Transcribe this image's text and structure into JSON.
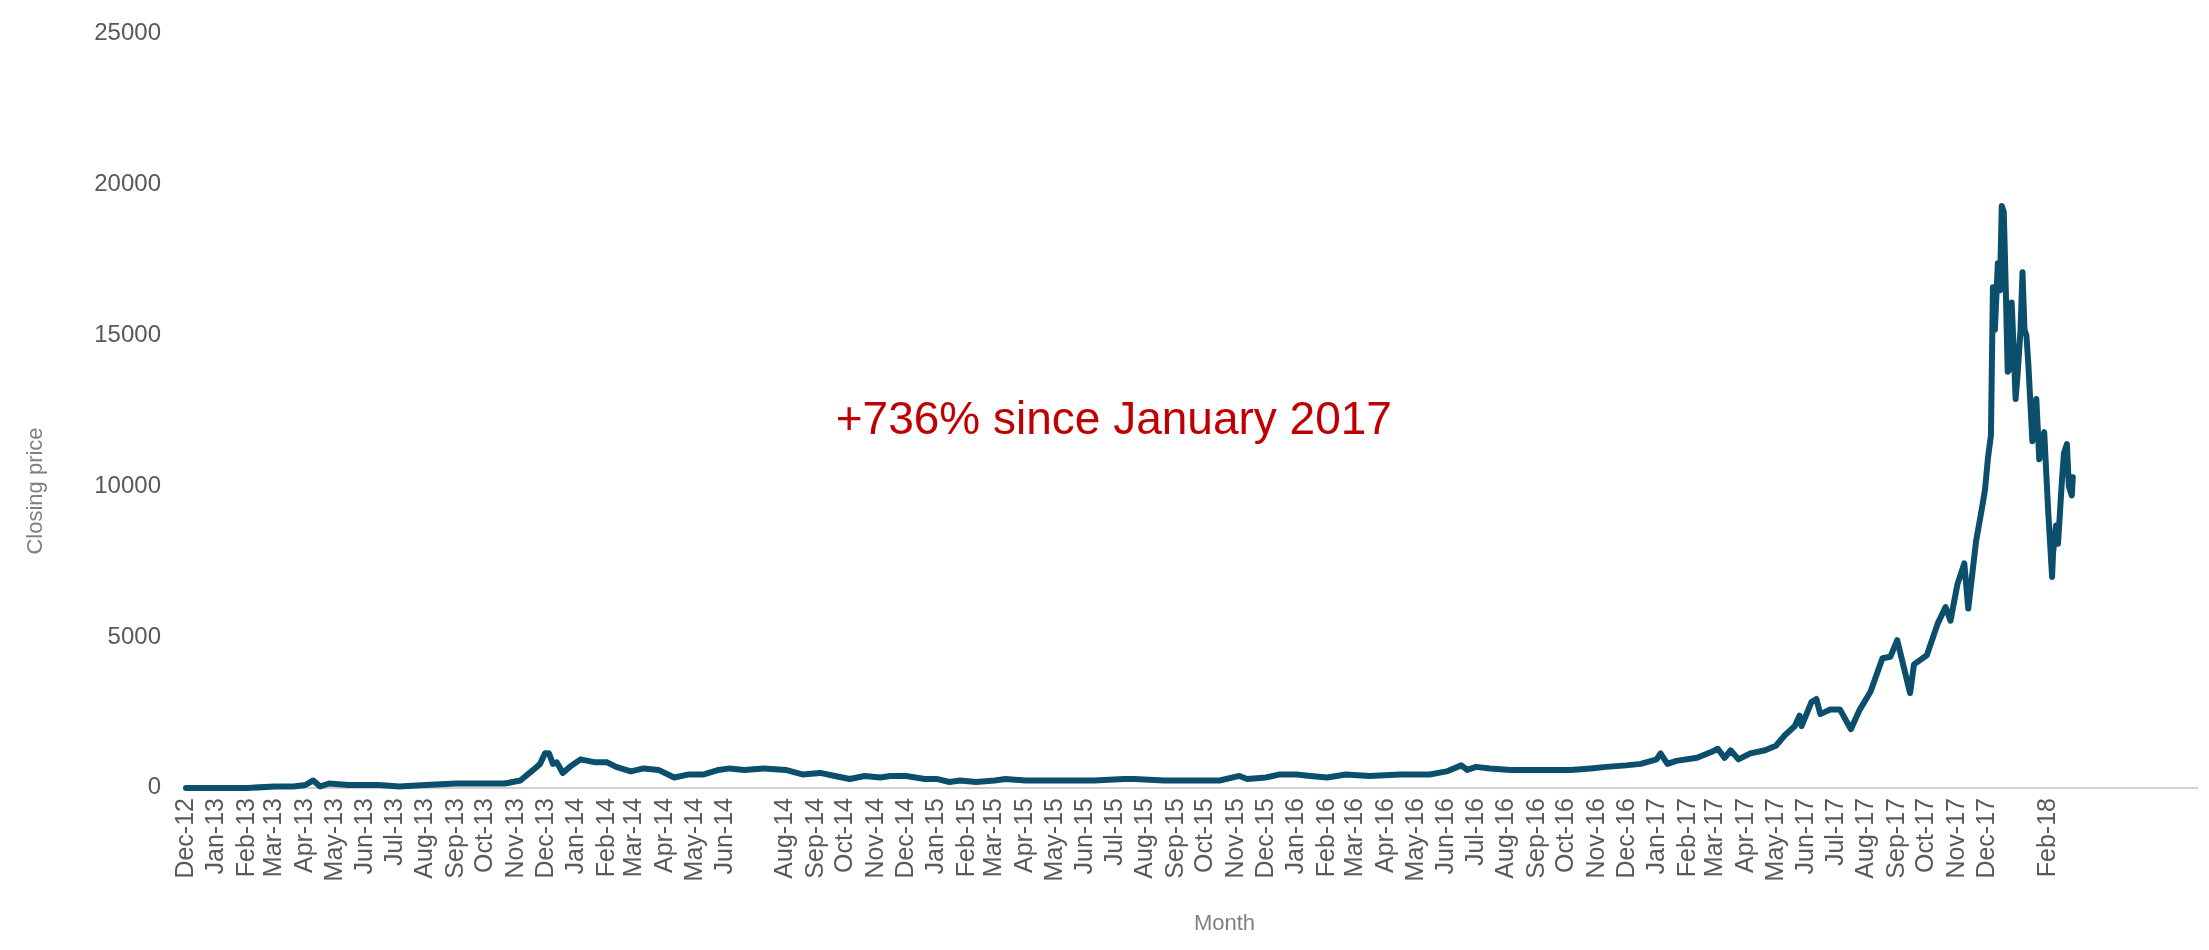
{
  "chart_data": {
    "type": "line",
    "xlabel": "Month",
    "ylabel": "Closing price",
    "annotations": [
      "+736% since January 2017"
    ],
    "x": [
      "2012-12-01",
      "2013-01-01",
      "2013-02-01",
      "2013-03-01",
      "2013-03-20",
      "2013-04-01",
      "2013-04-09",
      "2013-04-16",
      "2013-04-25",
      "2013-05-15",
      "2013-06-15",
      "2013-07-05",
      "2013-08-01",
      "2013-09-01",
      "2013-10-01",
      "2013-10-20",
      "2013-11-05",
      "2013-11-18",
      "2013-11-25",
      "2013-11-30",
      "2013-12-04",
      "2013-12-08",
      "2013-12-12",
      "2013-12-18",
      "2013-12-25",
      "2014-01-05",
      "2014-01-20",
      "2014-02-01",
      "2014-02-10",
      "2014-02-25",
      "2014-03-10",
      "2014-03-25",
      "2014-04-10",
      "2014-04-25",
      "2014-05-10",
      "2014-05-25",
      "2014-06-05",
      "2014-06-20",
      "2014-07-10",
      "2014-08-01",
      "2014-08-18",
      "2014-09-05",
      "2014-09-20",
      "2014-10-05",
      "2014-10-20",
      "2014-11-05",
      "2014-11-15",
      "2014-12-01",
      "2014-12-20",
      "2015-01-01",
      "2015-01-14",
      "2015-01-25",
      "2015-02-10",
      "2015-03-01",
      "2015-03-12",
      "2015-04-01",
      "2015-04-20",
      "2015-05-15",
      "2015-06-10",
      "2015-07-10",
      "2015-07-20",
      "2015-08-20",
      "2015-09-15",
      "2015-10-15",
      "2015-11-04",
      "2015-11-12",
      "2015-12-01",
      "2015-12-15",
      "2016-01-01",
      "2016-01-15",
      "2016-02-01",
      "2016-02-20",
      "2016-03-15",
      "2016-04-15",
      "2016-05-15",
      "2016-06-01",
      "2016-06-16",
      "2016-06-22",
      "2016-07-01",
      "2016-07-15",
      "2016-08-05",
      "2016-08-20",
      "2016-09-10",
      "2016-10-05",
      "2016-10-25",
      "2016-11-10",
      "2016-11-30",
      "2016-12-15",
      "2016-12-31",
      "2017-01-04",
      "2017-01-11",
      "2017-01-20",
      "2017-02-10",
      "2017-02-25",
      "2017-03-03",
      "2017-03-10",
      "2017-03-16",
      "2017-03-24",
      "2017-04-05",
      "2017-04-20",
      "2017-05-01",
      "2017-05-10",
      "2017-05-20",
      "2017-05-25",
      "2017-05-27",
      "2017-06-06",
      "2017-06-11",
      "2017-06-15",
      "2017-06-25",
      "2017-07-05",
      "2017-07-16",
      "2017-07-25",
      "2017-08-05",
      "2017-08-17",
      "2017-08-25",
      "2017-09-01",
      "2017-09-14",
      "2017-09-18",
      "2017-10-01",
      "2017-10-12",
      "2017-10-20",
      "2017-10-25",
      "2017-11-01",
      "2017-11-08",
      "2017-11-12",
      "2017-11-20",
      "2017-11-26",
      "2017-11-29",
      "2017-12-02",
      "2017-12-05",
      "2017-12-07",
      "2017-12-09",
      "2017-12-12",
      "2017-12-14",
      "2017-12-16",
      "2017-12-18",
      "2017-12-20",
      "2017-12-22",
      "2017-12-24",
      "2017-12-26",
      "2017-12-28",
      "2017-12-30",
      "2018-01-01",
      "2018-01-04",
      "2018-01-06",
      "2018-01-08",
      "2018-01-10",
      "2018-01-12",
      "2018-01-16",
      "2018-01-20",
      "2018-01-23",
      "2018-01-28",
      "2018-02-01",
      "2018-02-05",
      "2018-02-06",
      "2018-02-09",
      "2018-02-11",
      "2018-02-15",
      "2018-02-17",
      "2018-02-20",
      "2018-02-22",
      "2018-02-25",
      "2018-02-26"
    ],
    "series": [
      {
        "color": "#0b4f6c",
        "values": [
          0,
          0,
          0,
          50,
          50,
          100,
          250,
          50,
          150,
          100,
          100,
          50,
          100,
          150,
          150,
          150,
          250,
          600,
          800,
          1150,
          1150,
          800,
          850,
          500,
          700,
          950,
          850,
          850,
          700,
          550,
          650,
          600,
          350,
          450,
          450,
          600,
          650,
          600,
          650,
          600,
          450,
          500,
          400,
          300,
          400,
          350,
          400,
          400,
          300,
          300,
          200,
          250,
          200,
          250,
          300,
          250,
          250,
          250,
          250,
          300,
          300,
          250,
          250,
          250,
          400,
          300,
          350,
          450,
          450,
          400,
          350,
          450,
          400,
          450,
          450,
          550,
          750,
          600,
          700,
          650,
          600,
          600,
          600,
          600,
          650,
          700,
          750,
          800,
          950,
          1150,
          800,
          900,
          1000,
          1200,
          1300,
          1000,
          1250,
          950,
          1150,
          1250,
          1400,
          1750,
          2050,
          2400,
          2050,
          2850,
          2950,
          2450,
          2600,
          2600,
          1950,
          2600,
          3200,
          4300,
          4350,
          4900,
          3150,
          4100,
          4400,
          5450,
          6000,
          5550,
          6750,
          7450,
          5950,
          8200,
          9300,
          9900,
          10950,
          11700,
          16600,
          15200,
          17400,
          16500,
          19300,
          19100,
          16600,
          13800,
          13900,
          16100,
          14600,
          12900,
          13700,
          15200,
          17100,
          15200,
          15000,
          14000,
          11500,
          12900,
          10900,
          11800,
          9200,
          7000,
          7800,
          8700,
          8100,
          10200,
          11100,
          11400,
          10000,
          9700,
          10300
        ]
      }
    ],
    "xlim": [
      "2012-12-01",
      "2018-07-08"
    ],
    "xticks": [
      {
        "value": "2012-12-01",
        "label": "Dec-12"
      },
      {
        "value": "2013-01-01",
        "label": "Jan-13"
      },
      {
        "value": "2013-02-01",
        "label": "Feb-13"
      },
      {
        "value": "2013-03-01",
        "label": "Mar-13"
      },
      {
        "value": "2013-04-01",
        "label": "Apr-13"
      },
      {
        "value": "2013-05-01",
        "label": "May-13"
      },
      {
        "value": "2013-06-01",
        "label": "Jun-13"
      },
      {
        "value": "2013-07-01",
        "label": "Jul-13"
      },
      {
        "value": "2013-08-01",
        "label": "Aug-13"
      },
      {
        "value": "2013-09-01",
        "label": "Sep-13"
      },
      {
        "value": "2013-10-01",
        "label": "Oct-13"
      },
      {
        "value": "2013-11-01",
        "label": "Nov-13"
      },
      {
        "value": "2013-12-01",
        "label": "Dec-13"
      },
      {
        "value": "2014-01-01",
        "label": "Jan-14"
      },
      {
        "value": "2014-02-01",
        "label": "Feb-14"
      },
      {
        "value": "2014-03-01",
        "label": "Mar-14"
      },
      {
        "value": "2014-04-01",
        "label": "Apr-14"
      },
      {
        "value": "2014-05-01",
        "label": "May-14"
      },
      {
        "value": "2014-06-01",
        "label": "Jun-14"
      },
      {
        "value": "2014-08-01",
        "label": "Aug-14"
      },
      {
        "value": "2014-09-01",
        "label": "Sep-14"
      },
      {
        "value": "2014-10-01",
        "label": "Oct-14"
      },
      {
        "value": "2014-11-01",
        "label": "Nov-14"
      },
      {
        "value": "2014-12-01",
        "label": "Dec-14"
      },
      {
        "value": "2015-01-01",
        "label": "Jan-15"
      },
      {
        "value": "2015-02-01",
        "label": "Feb-15"
      },
      {
        "value": "2015-03-01",
        "label": "Mar-15"
      },
      {
        "value": "2015-04-01",
        "label": "Apr-15"
      },
      {
        "value": "2015-05-01",
        "label": "May-15"
      },
      {
        "value": "2015-06-01",
        "label": "Jun-15"
      },
      {
        "value": "2015-07-01",
        "label": "Jul-15"
      },
      {
        "value": "2015-08-01",
        "label": "Aug-15"
      },
      {
        "value": "2015-09-01",
        "label": "Sep-15"
      },
      {
        "value": "2015-10-01",
        "label": "Oct-15"
      },
      {
        "value": "2015-11-01",
        "label": "Nov-15"
      },
      {
        "value": "2015-12-01",
        "label": "Dec-15"
      },
      {
        "value": "2016-01-01",
        "label": "Jan-16"
      },
      {
        "value": "2016-02-01",
        "label": "Feb-16"
      },
      {
        "value": "2016-03-01",
        "label": "Mar-16"
      },
      {
        "value": "2016-04-01",
        "label": "Apr-16"
      },
      {
        "value": "2016-05-01",
        "label": "May-16"
      },
      {
        "value": "2016-06-01",
        "label": "Jun-16"
      },
      {
        "value": "2016-07-01",
        "label": "Jul-16"
      },
      {
        "value": "2016-08-01",
        "label": "Aug-16"
      },
      {
        "value": "2016-09-01",
        "label": "Sep-16"
      },
      {
        "value": "2016-10-01",
        "label": "Oct-16"
      },
      {
        "value": "2016-11-01",
        "label": "Nov-16"
      },
      {
        "value": "2016-12-01",
        "label": "Dec-16"
      },
      {
        "value": "2017-01-01",
        "label": "Jan-17"
      },
      {
        "value": "2017-02-01",
        "label": "Feb-17"
      },
      {
        "value": "2017-03-01",
        "label": "Mar-17"
      },
      {
        "value": "2017-04-01",
        "label": "Apr-17"
      },
      {
        "value": "2017-05-01",
        "label": "May-17"
      },
      {
        "value": "2017-06-01",
        "label": "Jun-17"
      },
      {
        "value": "2017-07-01",
        "label": "Jul-17"
      },
      {
        "value": "2017-08-01",
        "label": "Aug-17"
      },
      {
        "value": "2017-09-01",
        "label": "Sep-17"
      },
      {
        "value": "2017-10-01",
        "label": "Oct-17"
      },
      {
        "value": "2017-11-01",
        "label": "Nov-17"
      },
      {
        "value": "2017-12-01",
        "label": "Dec-17"
      },
      {
        "value": "2018-02-01",
        "label": "Feb-18"
      }
    ],
    "ylim": [
      0,
      25000
    ],
    "yticks": [
      0,
      5000,
      10000,
      15000,
      20000,
      25000
    ],
    "marker": "none",
    "line_style": "solid"
  }
}
